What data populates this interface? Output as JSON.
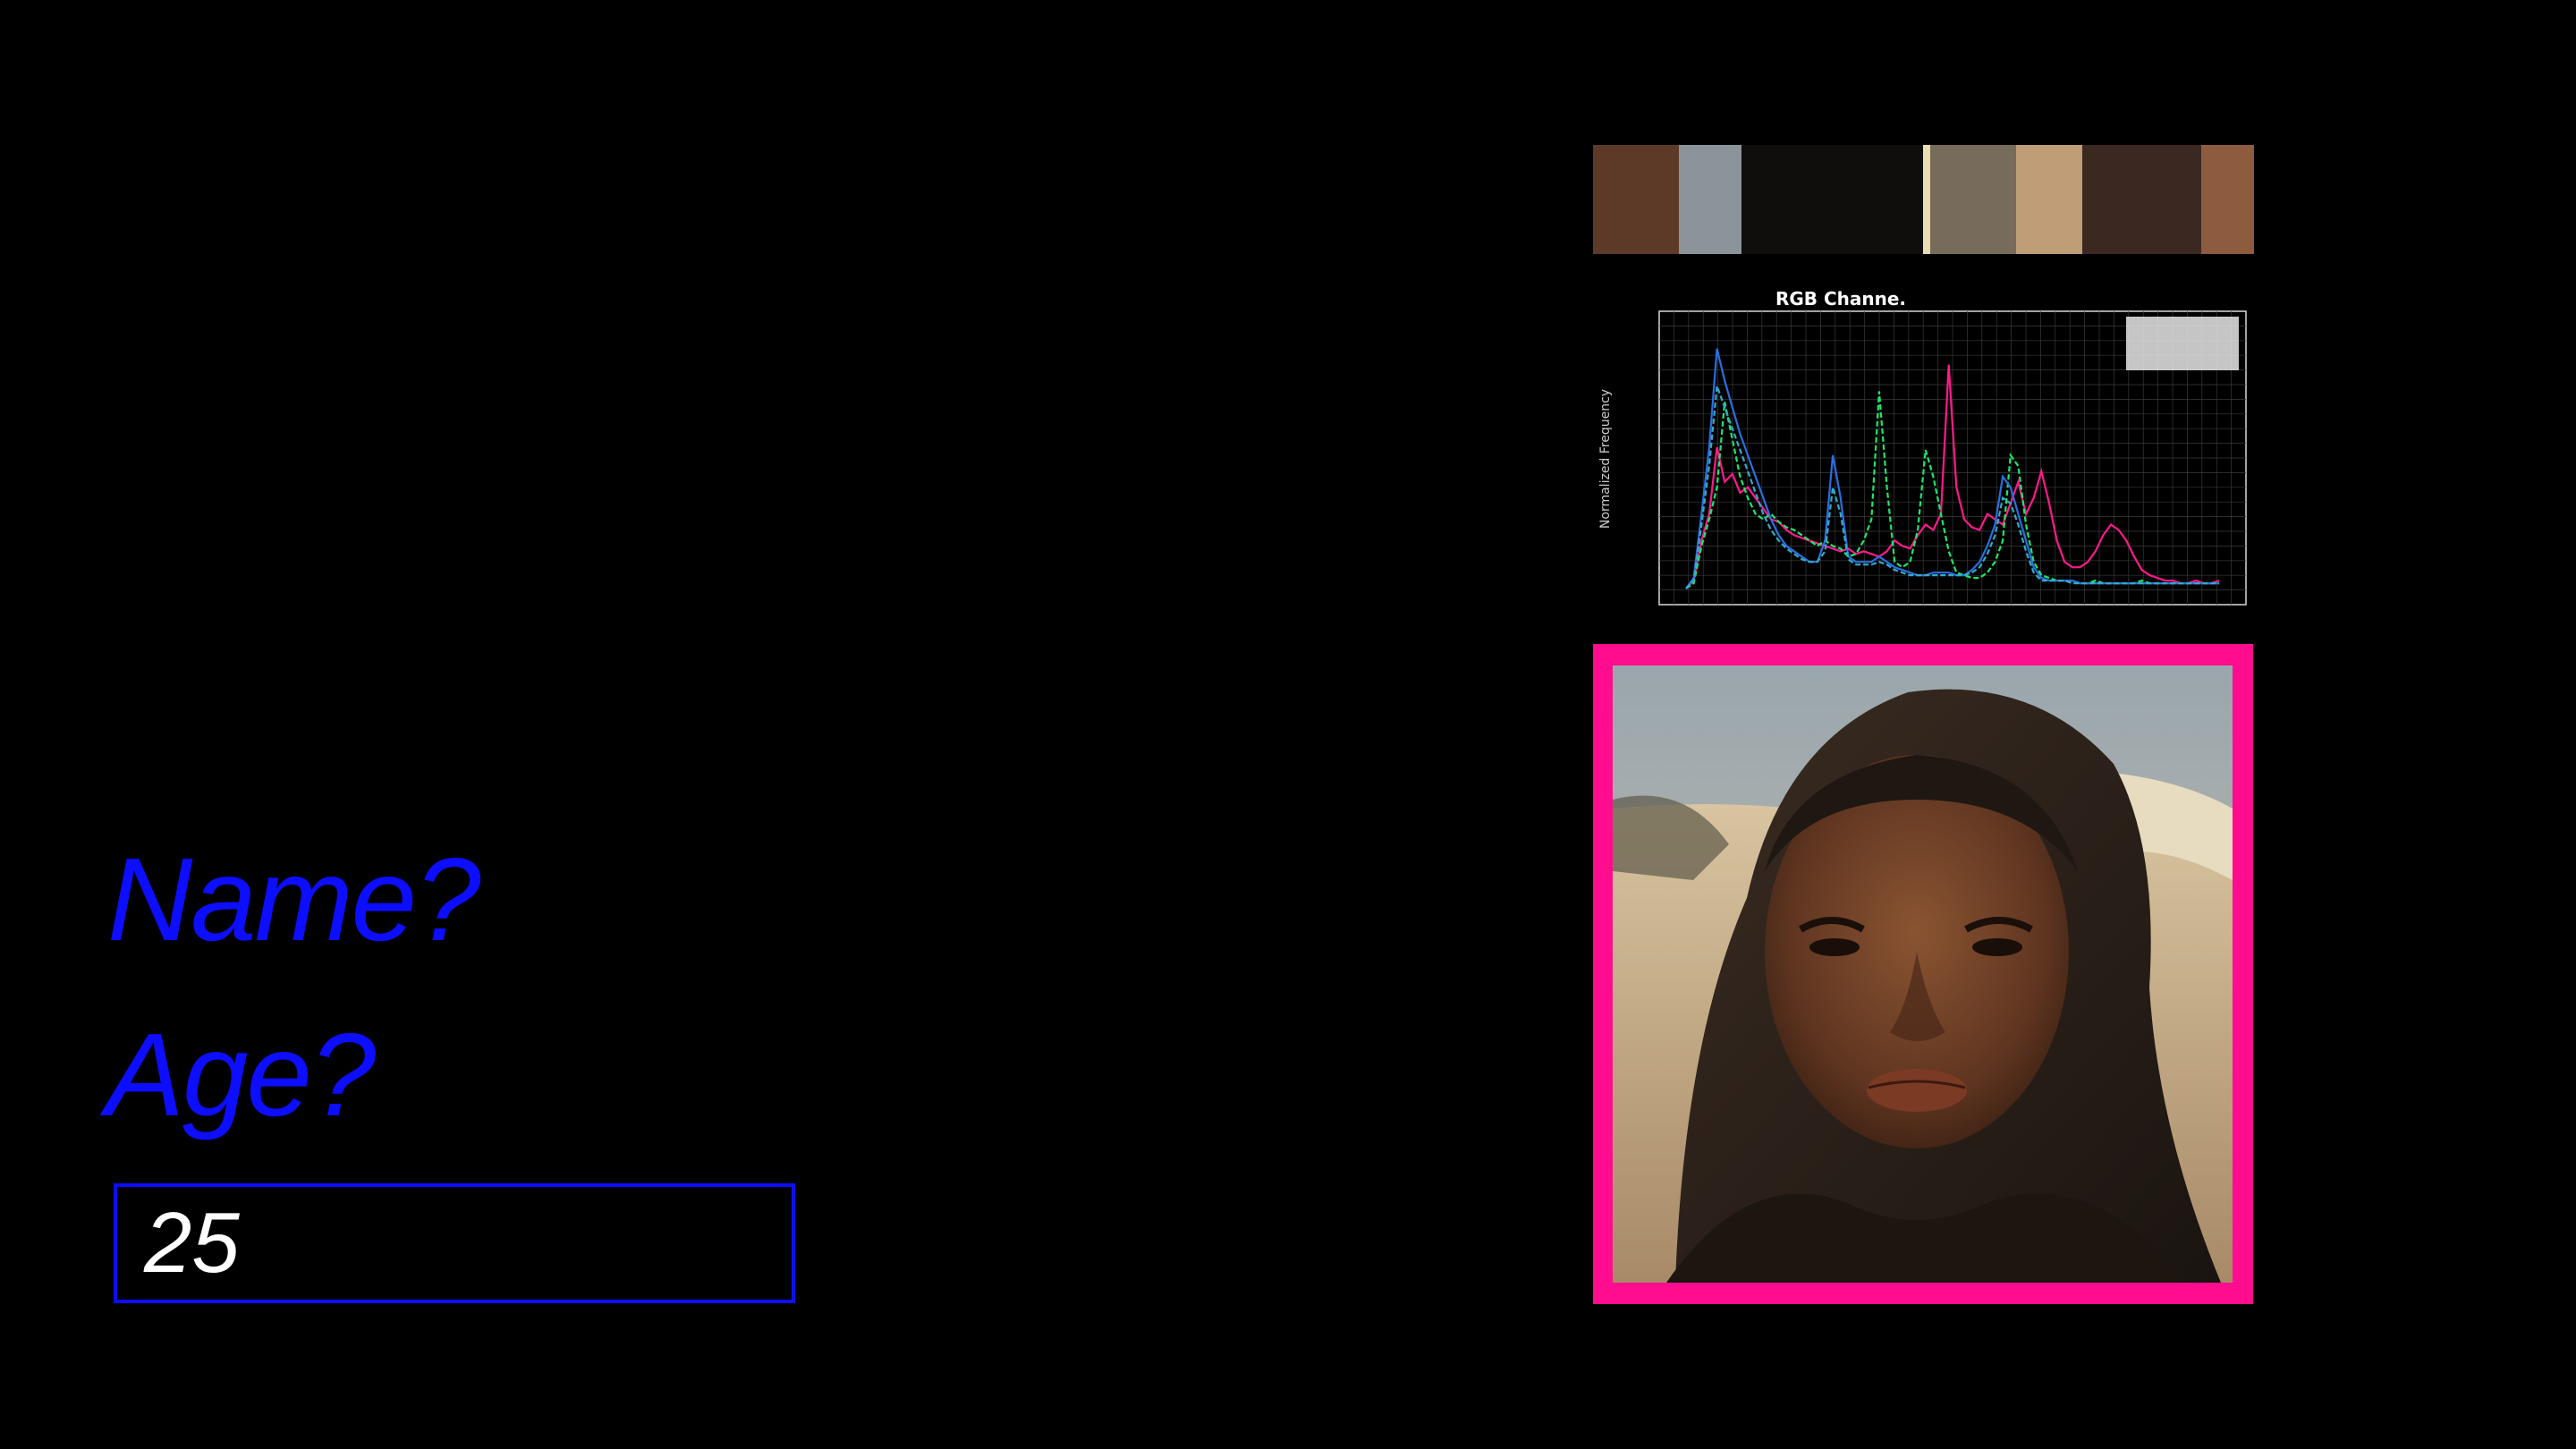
{
  "form": {
    "name_label": "Name?",
    "age_label": "Age?",
    "age_value": "25"
  },
  "palette": {
    "swatches": [
      {
        "color": "#5c3a27",
        "weight": 13
      },
      {
        "color": "#8a949a",
        "weight": 9.5
      },
      {
        "color": "#0f0e0c",
        "weight": 27.5
      },
      {
        "color": "#e9dcaf",
        "weight": 1
      },
      {
        "color": "#776b5b",
        "weight": 13
      },
      {
        "color": "#bf9d77",
        "weight": 10
      },
      {
        "color": "#3b2820",
        "weight": 18
      },
      {
        "color": "#8d5b3e",
        "weight": 8
      }
    ]
  },
  "accent": {
    "label_color": "#0d0dff",
    "frame_color": "#ff0d8e"
  },
  "chart_data": {
    "type": "line",
    "title": "RGB Channe.",
    "ylabel": "Normalized Frequency",
    "grid": true,
    "series": [
      {
        "color": "#ff1a8c",
        "dash": "solid",
        "values": [
          0.02,
          0.05,
          0.2,
          0.3,
          0.55,
          0.42,
          0.45,
          0.38,
          0.4,
          0.36,
          0.32,
          0.28,
          0.27,
          0.24,
          0.22,
          0.21,
          0.2,
          0.19,
          0.18,
          0.17,
          0.16,
          0.17,
          0.15,
          0.16,
          0.15,
          0.14,
          0.16,
          0.2,
          0.18,
          0.17,
          0.22,
          0.26,
          0.24,
          0.3,
          0.86,
          0.4,
          0.28,
          0.25,
          0.24,
          0.3,
          0.28,
          0.26,
          0.34,
          0.42,
          0.3,
          0.36,
          0.46,
          0.34,
          0.2,
          0.12,
          0.1,
          0.1,
          0.12,
          0.16,
          0.22,
          0.26,
          0.24,
          0.2,
          0.14,
          0.09,
          0.07,
          0.06,
          0.05,
          0.05,
          0.04,
          0.04,
          0.05,
          0.04,
          0.04,
          0.05
        ]
      },
      {
        "color": "#1ee66a",
        "dash": "dashed",
        "values": [
          0.02,
          0.04,
          0.18,
          0.28,
          0.4,
          0.72,
          0.58,
          0.44,
          0.36,
          0.3,
          0.28,
          0.3,
          0.27,
          0.25,
          0.24,
          0.22,
          0.2,
          0.18,
          0.2,
          0.18,
          0.17,
          0.14,
          0.15,
          0.2,
          0.28,
          0.76,
          0.4,
          0.12,
          0.1,
          0.12,
          0.24,
          0.54,
          0.44,
          0.3,
          0.16,
          0.08,
          0.07,
          0.06,
          0.06,
          0.08,
          0.12,
          0.2,
          0.52,
          0.48,
          0.26,
          0.12,
          0.07,
          0.06,
          0.05,
          0.05,
          0.05,
          0.04,
          0.04,
          0.05,
          0.04,
          0.04,
          0.04,
          0.04,
          0.04,
          0.05,
          0.04,
          0.04,
          0.04,
          0.04,
          0.04,
          0.04,
          0.04,
          0.04,
          0.04,
          0.04
        ]
      },
      {
        "color": "#2a6fe0",
        "dash": "solid",
        "values": [
          0.02,
          0.06,
          0.3,
          0.55,
          0.92,
          0.8,
          0.7,
          0.6,
          0.52,
          0.44,
          0.36,
          0.28,
          0.22,
          0.18,
          0.16,
          0.14,
          0.12,
          0.12,
          0.2,
          0.52,
          0.36,
          0.14,
          0.12,
          0.12,
          0.12,
          0.14,
          0.12,
          0.1,
          0.09,
          0.08,
          0.07,
          0.07,
          0.08,
          0.08,
          0.08,
          0.07,
          0.07,
          0.09,
          0.12,
          0.18,
          0.26,
          0.44,
          0.4,
          0.3,
          0.2,
          0.1,
          0.06,
          0.05,
          0.05,
          0.05,
          0.05,
          0.04,
          0.04,
          0.04,
          0.04,
          0.04,
          0.04,
          0.04,
          0.04,
          0.04,
          0.04,
          0.04,
          0.04,
          0.04,
          0.04,
          0.04,
          0.04,
          0.04,
          0.04,
          0.04
        ]
      },
      {
        "color": "#35a9c9",
        "dash": "dashed",
        "values": [
          0.02,
          0.05,
          0.26,
          0.48,
          0.78,
          0.7,
          0.62,
          0.54,
          0.46,
          0.38,
          0.3,
          0.24,
          0.2,
          0.17,
          0.15,
          0.13,
          0.12,
          0.12,
          0.16,
          0.4,
          0.3,
          0.13,
          0.11,
          0.11,
          0.11,
          0.12,
          0.11,
          0.09,
          0.08,
          0.07,
          0.07,
          0.07,
          0.07,
          0.07,
          0.07,
          0.07,
          0.07,
          0.08,
          0.1,
          0.15,
          0.22,
          0.36,
          0.34,
          0.26,
          0.16,
          0.08,
          0.05,
          0.05,
          0.05,
          0.05,
          0.04,
          0.04,
          0.04,
          0.04,
          0.04,
          0.04,
          0.04,
          0.04,
          0.04,
          0.04,
          0.04,
          0.04,
          0.04,
          0.04,
          0.04,
          0.04,
          0.04,
          0.04,
          0.04,
          0.04
        ]
      }
    ]
  }
}
